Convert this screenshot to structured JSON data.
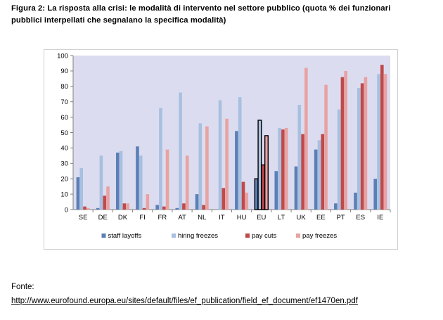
{
  "caption": {
    "line1": "Figura 2: La risposta alla crisi: le modalità di intervento nel settore pubblico (quota % dei funzionari",
    "line2": "pubblici interpellati che segnalano la specifica modalità)"
  },
  "source": {
    "label": "Fonte:",
    "url": "http://www.eurofound.europa.eu/sites/default/files/ef_publication/field_ef_document/ef1470en.pdf"
  },
  "colors": {
    "plot_bg": "#dcdcf0",
    "staff_layoffs": "#5b7fb6",
    "hiring_freezes": "#a8c0e0",
    "pay_cuts": "#bf4a4a",
    "pay_freezes": "#e8a2a2",
    "highlight_border": "#000000"
  },
  "chart_data": {
    "type": "bar",
    "title": "",
    "xlabel": "",
    "ylabel": "",
    "ylim": [
      0,
      100
    ],
    "yticks": [
      0,
      10,
      20,
      30,
      40,
      50,
      60,
      70,
      80,
      90,
      100
    ],
    "grid": false,
    "legend_position": "bottom",
    "highlight_category": "EU",
    "categories": [
      "SE",
      "DE",
      "DK",
      "FI",
      "FR",
      "AT",
      "NL",
      "IT",
      "HU",
      "EU",
      "LT",
      "UK",
      "EE",
      "PT",
      "ES",
      "IE"
    ],
    "series": [
      {
        "name": "staff layoffs",
        "color_key": "staff_layoffs",
        "values": [
          21,
          1,
          37,
          41,
          3,
          1,
          10,
          0,
          51,
          20,
          25,
          28,
          39,
          4,
          11,
          20
        ]
      },
      {
        "name": "hiring freezes",
        "color_key": "hiring_freezes",
        "values": [
          27,
          35,
          38,
          35,
          66,
          76,
          56,
          71,
          73,
          58,
          53,
          68,
          45,
          65,
          79,
          88
        ]
      },
      {
        "name": "pay cuts",
        "color_key": "pay_cuts",
        "values": [
          2,
          9,
          4,
          1,
          2,
          4,
          3,
          14,
          18,
          29,
          52,
          49,
          49,
          86,
          82,
          94
        ]
      },
      {
        "name": "pay freezes",
        "color_key": "pay_freezes",
        "values": [
          1,
          15,
          4,
          10,
          39,
          35,
          54,
          59,
          11,
          48,
          53,
          92,
          81,
          90,
          86,
          88
        ]
      }
    ]
  }
}
